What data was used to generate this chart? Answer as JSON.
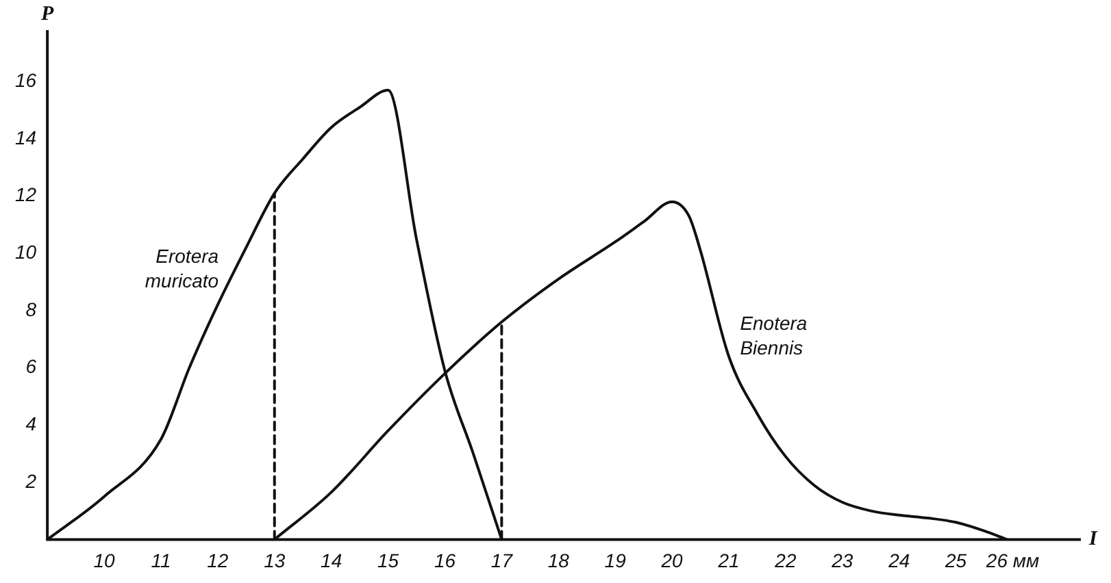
{
  "chart_data": {
    "type": "line",
    "xlabel": "I",
    "ylabel": "P",
    "xlim": [
      9,
      27.2
    ],
    "ylim": [
      0,
      17.8
    ],
    "xticks": [
      10,
      11,
      12,
      13,
      14,
      15,
      16,
      17,
      18,
      19,
      20,
      21,
      22,
      23,
      24,
      25,
      {
        "value": 26,
        "label": "26 мм"
      }
    ],
    "yticks": [
      2,
      4,
      6,
      8,
      10,
      12,
      14,
      16
    ],
    "grid": false,
    "legend": false,
    "marker": "none",
    "line_style": "solid",
    "series": [
      {
        "name": "Erotera muricato",
        "color": "#111111",
        "x": [
          9,
          10,
          11,
          11.5,
          12,
          12.5,
          13,
          13.5,
          14,
          14.5,
          15,
          15.5,
          16,
          16.5,
          17
        ],
        "values": [
          0,
          1.5,
          3.5,
          6,
          8.2,
          10.2,
          12.1,
          13.3,
          14.4,
          15.1,
          15.7,
          10.5,
          5.9,
          3,
          0
        ]
      },
      {
        "name": "Enotera Biennis",
        "color": "#111111",
        "x": [
          13,
          14,
          15,
          16,
          17,
          18,
          19,
          19.5,
          20,
          20.3,
          20.5,
          21,
          21.5,
          22,
          22.5,
          23,
          23.5,
          24,
          24.5,
          25,
          25.5,
          25.9
        ],
        "values": [
          0,
          1.65,
          3.8,
          5.8,
          7.6,
          9.1,
          10.4,
          11.1,
          11.8,
          11.3,
          10.1,
          6.4,
          4.4,
          2.9,
          1.9,
          1.3,
          1,
          0.85,
          0.75,
          0.6,
          0.3,
          0
        ]
      },
      {
        "type": "line",
        "line_style": "dashed",
        "color": "#111111",
        "x": [
          13,
          13
        ],
        "values": [
          0,
          12.1
        ]
      },
      {
        "type": "line",
        "line_style": "dashed",
        "color": "#111111",
        "x": [
          17,
          17
        ],
        "values": [
          0,
          7.6
        ]
      }
    ]
  }
}
